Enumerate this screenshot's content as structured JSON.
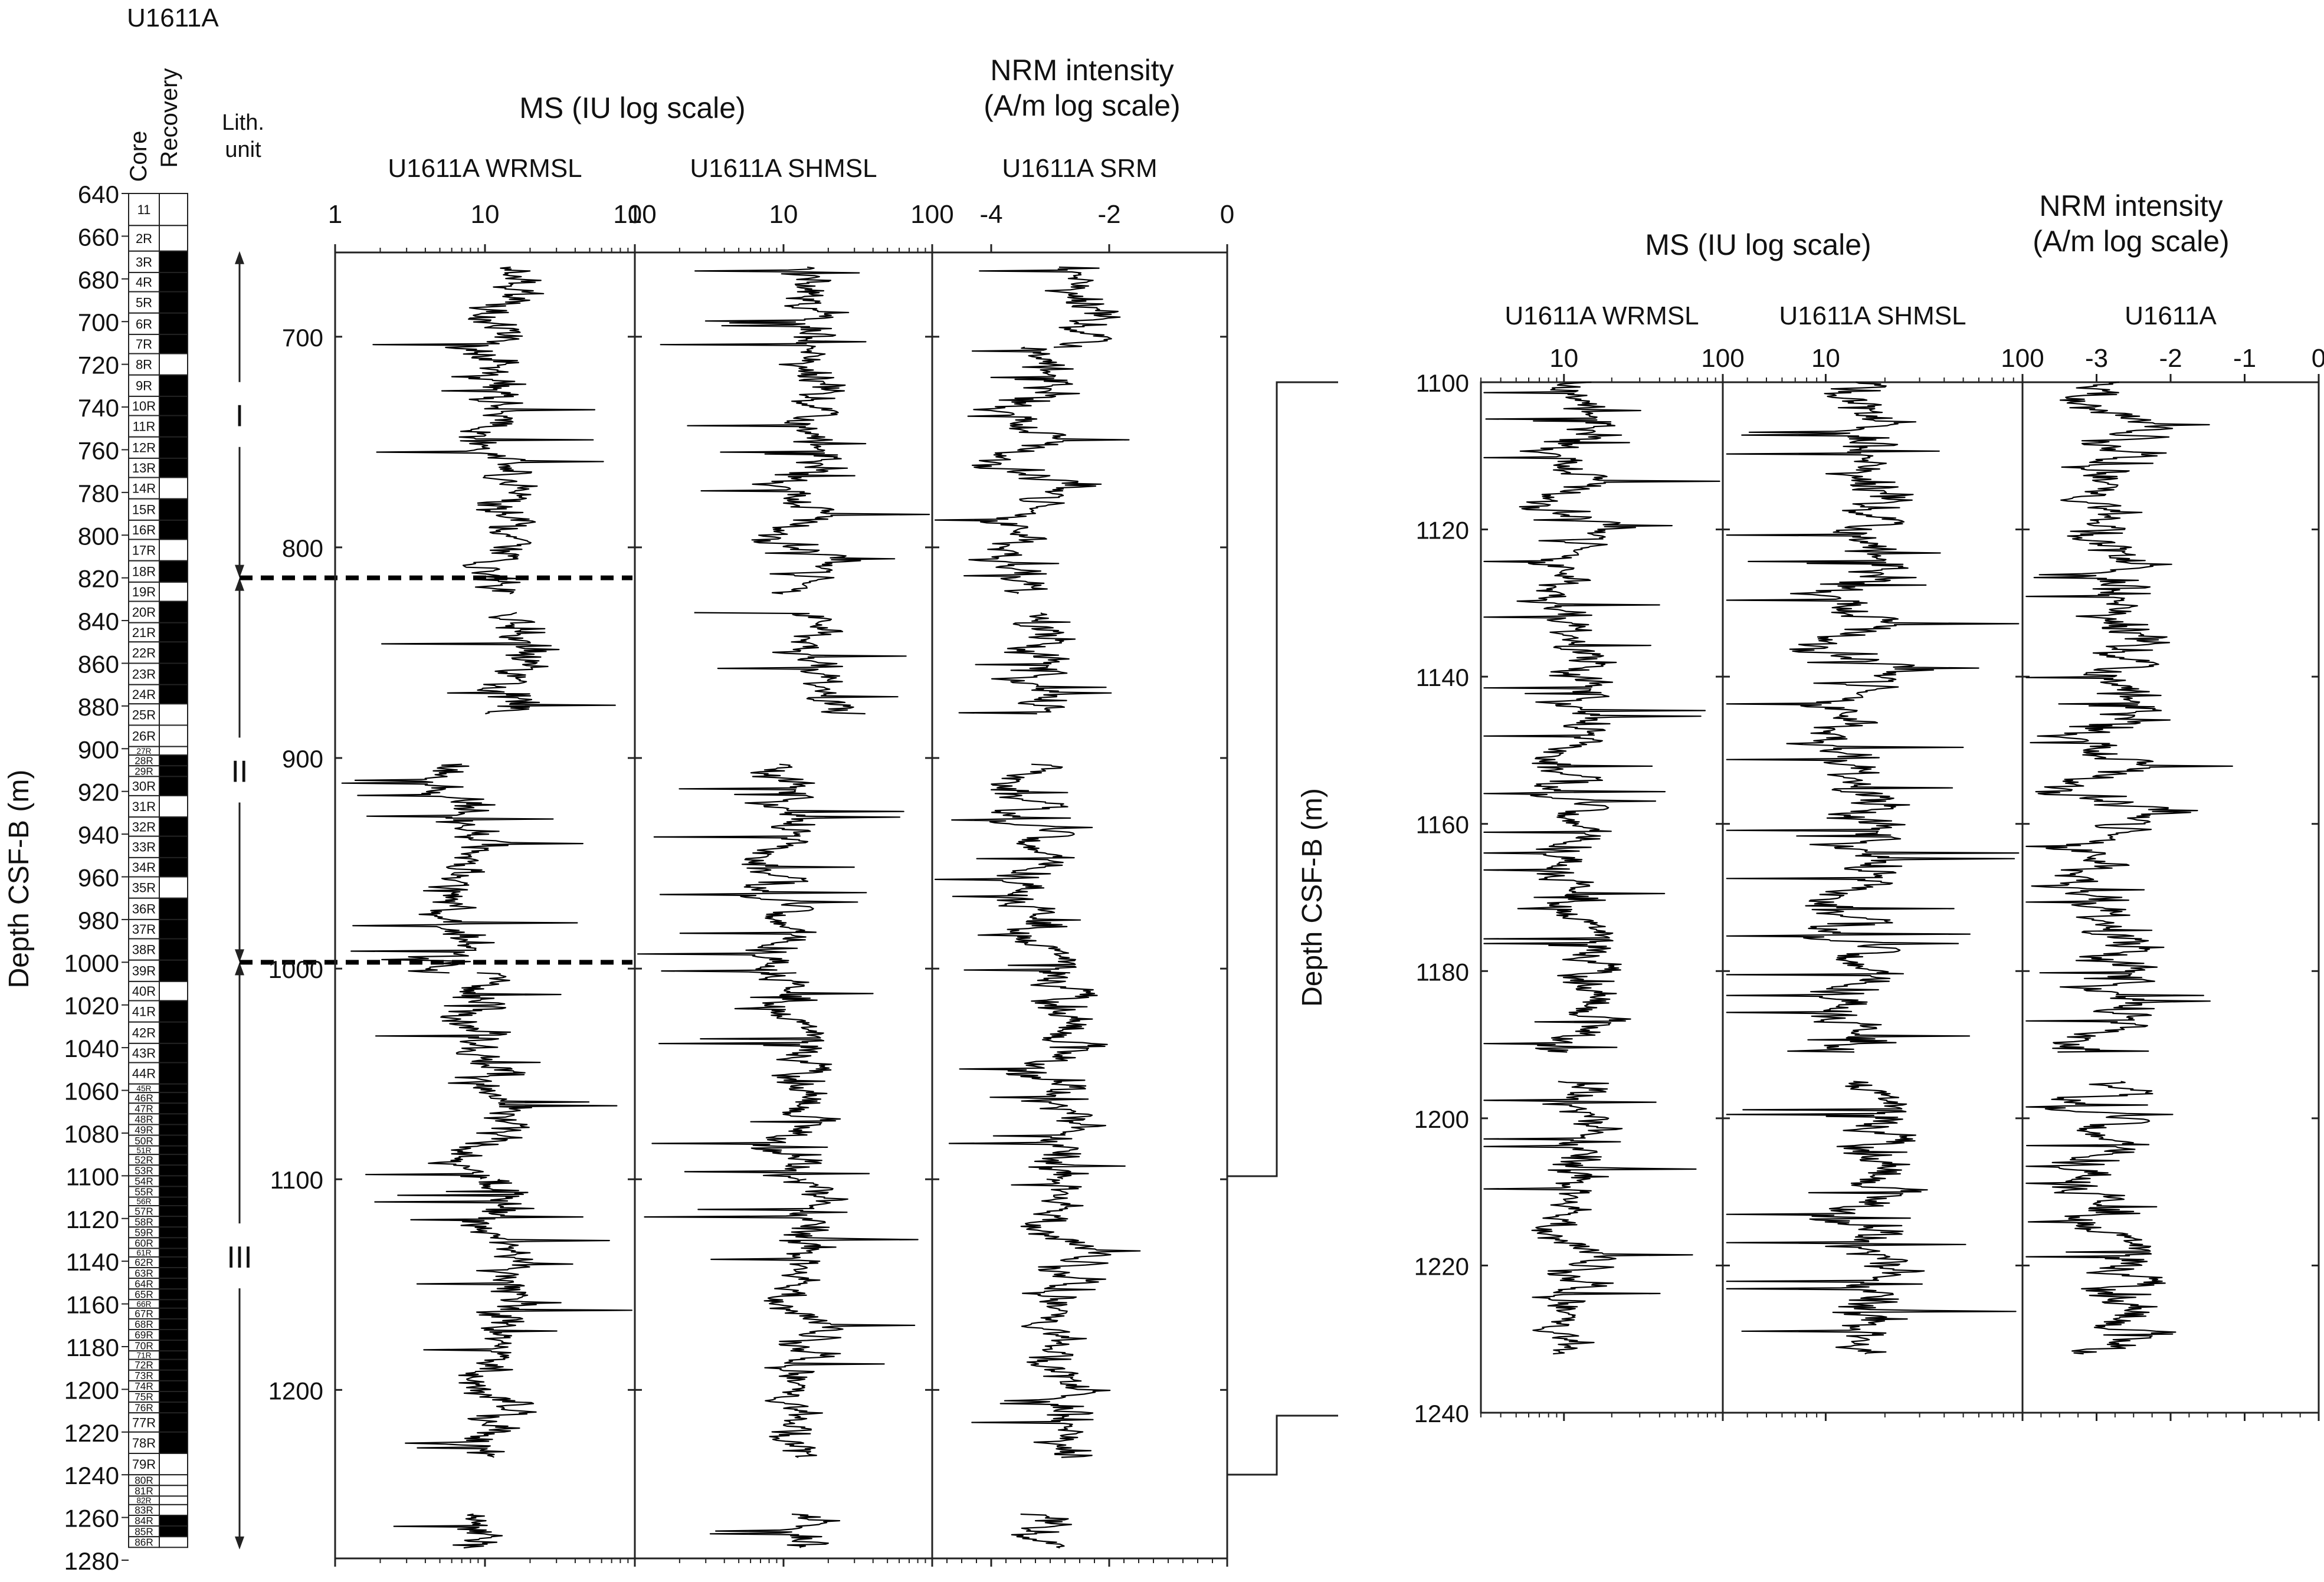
{
  "site_title": "U1611A",
  "core_column": {
    "core_label": "Core",
    "recovery_label": "Recovery",
    "lith_label": "Lith.\nunit",
    "depth_label": "Depth CSF-B (m)",
    "depth_ticks": [
      "640",
      "660",
      "680",
      "700",
      "720",
      "740",
      "760",
      "780",
      "800",
      "820",
      "840",
      "860",
      "880",
      "900",
      "920",
      "940",
      "960",
      "980",
      "1000",
      "1020",
      "1040",
      "1060",
      "1080",
      "1100",
      "1120",
      "1140",
      "1160",
      "1180",
      "1200",
      "1220",
      "1240",
      "1260",
      "1280"
    ],
    "cores": [
      {
        "label": "11",
        "top": 640,
        "bottom": 655,
        "recovery": 0
      },
      {
        "label": "2R",
        "top": 655,
        "bottom": 667,
        "recovery": 0
      },
      {
        "label": "3R",
        "top": 667,
        "bottom": 677,
        "recovery": 1
      },
      {
        "label": "4R",
        "top": 677,
        "bottom": 686,
        "recovery": 1
      },
      {
        "label": "5R",
        "top": 686,
        "bottom": 696,
        "recovery": 1
      },
      {
        "label": "6R",
        "top": 696,
        "bottom": 706,
        "recovery": 1
      },
      {
        "label": "7R",
        "top": 706,
        "bottom": 715,
        "recovery": 1
      },
      {
        "label": "8R",
        "top": 715,
        "bottom": 725,
        "recovery": 0
      },
      {
        "label": "9R",
        "top": 725,
        "bottom": 735,
        "recovery": 1
      },
      {
        "label": "10R",
        "top": 735,
        "bottom": 744,
        "recovery": 1
      },
      {
        "label": "11R",
        "top": 744,
        "bottom": 754,
        "recovery": 1
      },
      {
        "label": "12R",
        "top": 754,
        "bottom": 764,
        "recovery": 1
      },
      {
        "label": "13R",
        "top": 764,
        "bottom": 773,
        "recovery": 1
      },
      {
        "label": "14R",
        "top": 773,
        "bottom": 783,
        "recovery": 0
      },
      {
        "label": "15R",
        "top": 783,
        "bottom": 793,
        "recovery": 1
      },
      {
        "label": "16R",
        "top": 793,
        "bottom": 802,
        "recovery": 1
      },
      {
        "label": "17R",
        "top": 802,
        "bottom": 812,
        "recovery": 0
      },
      {
        "label": "18R",
        "top": 812,
        "bottom": 822,
        "recovery": 1
      },
      {
        "label": "19R",
        "top": 822,
        "bottom": 831,
        "recovery": 0
      },
      {
        "label": "20R",
        "top": 831,
        "bottom": 841,
        "recovery": 1
      },
      {
        "label": "21R",
        "top": 841,
        "bottom": 850,
        "recovery": 1
      },
      {
        "label": "22R",
        "top": 850,
        "bottom": 860,
        "recovery": 1
      },
      {
        "label": "23R",
        "top": 860,
        "bottom": 870,
        "recovery": 1
      },
      {
        "label": "24R",
        "top": 870,
        "bottom": 879,
        "recovery": 1
      },
      {
        "label": "25R",
        "top": 879,
        "bottom": 889,
        "recovery": 0
      },
      {
        "label": "26R",
        "top": 889,
        "bottom": 899,
        "recovery": 0
      },
      {
        "label": "27R",
        "top": 899,
        "bottom": 903,
        "recovery": 0
      },
      {
        "label": "28R",
        "top": 903,
        "bottom": 908,
        "recovery": 1
      },
      {
        "label": "29R",
        "top": 908,
        "bottom": 913,
        "recovery": 1
      },
      {
        "label": "30R",
        "top": 913,
        "bottom": 922,
        "recovery": 1
      },
      {
        "label": "31R",
        "top": 922,
        "bottom": 932,
        "recovery": 0
      },
      {
        "label": "32R",
        "top": 932,
        "bottom": 941,
        "recovery": 1
      },
      {
        "label": "33R",
        "top": 941,
        "bottom": 951,
        "recovery": 1
      },
      {
        "label": "34R",
        "top": 951,
        "bottom": 960,
        "recovery": 1
      },
      {
        "label": "35R",
        "top": 960,
        "bottom": 970,
        "recovery": 0
      },
      {
        "label": "36R",
        "top": 970,
        "bottom": 980,
        "recovery": 1
      },
      {
        "label": "37R",
        "top": 980,
        "bottom": 989,
        "recovery": 1
      },
      {
        "label": "38R",
        "top": 989,
        "bottom": 999,
        "recovery": 1
      },
      {
        "label": "39R",
        "top": 999,
        "bottom": 1009,
        "recovery": 1
      },
      {
        "label": "40R",
        "top": 1009,
        "bottom": 1018,
        "recovery": 0
      },
      {
        "label": "41R",
        "top": 1018,
        "bottom": 1028,
        "recovery": 1
      },
      {
        "label": "42R",
        "top": 1028,
        "bottom": 1038,
        "recovery": 1
      },
      {
        "label": "43R",
        "top": 1038,
        "bottom": 1047,
        "recovery": 1
      },
      {
        "label": "44R",
        "top": 1047,
        "bottom": 1057,
        "recovery": 1
      },
      {
        "label": "45R",
        "top": 1057,
        "bottom": 1061,
        "recovery": 1
      },
      {
        "label": "46R",
        "top": 1061,
        "bottom": 1066,
        "recovery": 1
      },
      {
        "label": "47R",
        "top": 1066,
        "bottom": 1071,
        "recovery": 1
      },
      {
        "label": "48R",
        "top": 1071,
        "bottom": 1076,
        "recovery": 1
      },
      {
        "label": "49R",
        "top": 1076,
        "bottom": 1081,
        "recovery": 1
      },
      {
        "label": "50R",
        "top": 1081,
        "bottom": 1086,
        "recovery": 1
      },
      {
        "label": "51R",
        "top": 1086,
        "bottom": 1090,
        "recovery": 1
      },
      {
        "label": "52R",
        "top": 1090,
        "bottom": 1095,
        "recovery": 1
      },
      {
        "label": "53R",
        "top": 1095,
        "bottom": 1100,
        "recovery": 1
      },
      {
        "label": "54R",
        "top": 1100,
        "bottom": 1105,
        "recovery": 1
      },
      {
        "label": "55R",
        "top": 1105,
        "bottom": 1110,
        "recovery": 1
      },
      {
        "label": "56R",
        "top": 1110,
        "bottom": 1114,
        "recovery": 1
      },
      {
        "label": "57R",
        "top": 1114,
        "bottom": 1119,
        "recovery": 1
      },
      {
        "label": "58R",
        "top": 1119,
        "bottom": 1124,
        "recovery": 1
      },
      {
        "label": "59R",
        "top": 1124,
        "bottom": 1129,
        "recovery": 1
      },
      {
        "label": "60R",
        "top": 1129,
        "bottom": 1134,
        "recovery": 1
      },
      {
        "label": "61R",
        "top": 1134,
        "bottom": 1138,
        "recovery": 1
      },
      {
        "label": "62R",
        "top": 1138,
        "bottom": 1143,
        "recovery": 1
      },
      {
        "label": "63R",
        "top": 1143,
        "bottom": 1148,
        "recovery": 1
      },
      {
        "label": "64R",
        "top": 1148,
        "bottom": 1153,
        "recovery": 1
      },
      {
        "label": "65R",
        "top": 1153,
        "bottom": 1158,
        "recovery": 1
      },
      {
        "label": "66R",
        "top": 1158,
        "bottom": 1162,
        "recovery": 1
      },
      {
        "label": "67R",
        "top": 1162,
        "bottom": 1167,
        "recovery": 1
      },
      {
        "label": "68R",
        "top": 1167,
        "bottom": 1172,
        "recovery": 1
      },
      {
        "label": "69R",
        "top": 1172,
        "bottom": 1177,
        "recovery": 1
      },
      {
        "label": "70R",
        "top": 1177,
        "bottom": 1182,
        "recovery": 1
      },
      {
        "label": "71R",
        "top": 1182,
        "bottom": 1186,
        "recovery": 1
      },
      {
        "label": "72R",
        "top": 1186,
        "bottom": 1191,
        "recovery": 1
      },
      {
        "label": "73R",
        "top": 1191,
        "bottom": 1196,
        "recovery": 1
      },
      {
        "label": "74R",
        "top": 1196,
        "bottom": 1201,
        "recovery": 1
      },
      {
        "label": "75R",
        "top": 1201,
        "bottom": 1206,
        "recovery": 1
      },
      {
        "label": "76R",
        "top": 1206,
        "bottom": 1211,
        "recovery": 1
      },
      {
        "label": "77R",
        "top": 1211,
        "bottom": 1220,
        "recovery": 1
      },
      {
        "label": "78R",
        "top": 1220,
        "bottom": 1230,
        "recovery": 1
      },
      {
        "label": "79R",
        "top": 1230,
        "bottom": 1240,
        "recovery": 0
      },
      {
        "label": "80R",
        "top": 1240,
        "bottom": 1245,
        "recovery": 0
      },
      {
        "label": "81R",
        "top": 1245,
        "bottom": 1250,
        "recovery": 0
      },
      {
        "label": "82R",
        "top": 1250,
        "bottom": 1254,
        "recovery": 0
      },
      {
        "label": "83R",
        "top": 1254,
        "bottom": 1259,
        "recovery": 0
      },
      {
        "label": "84R",
        "top": 1259,
        "bottom": 1264,
        "recovery": 1
      },
      {
        "label": "85R",
        "top": 1264,
        "bottom": 1269,
        "recovery": 1
      },
      {
        "label": "86R",
        "top": 1269,
        "bottom": 1274,
        "recovery": 0
      }
    ],
    "lith_units": [
      {
        "label": "I",
        "top": 667,
        "bottom": 820
      },
      {
        "label": "II",
        "top": 820,
        "bottom": 1000
      },
      {
        "label": "III",
        "top": 1000,
        "bottom": 1275
      }
    ],
    "unit_boundaries": [
      820,
      1000
    ]
  },
  "panel_a": {
    "ms_group_title": "MS (IU log scale)",
    "nrm_group_title": "NRM intensity\n(A/m log scale)",
    "depth_ticks": [
      "700",
      "800",
      "900",
      "1000",
      "1100",
      "1200"
    ],
    "tracks": [
      {
        "name": "U1611A WRMSL",
        "ticks": [
          "1",
          "10",
          "100"
        ]
      },
      {
        "name": "U1611A SHMSL",
        "ticks": [
          "1",
          "10",
          "100"
        ]
      },
      {
        "name": "U1611A SRM",
        "ticks": [
          "-4",
          "-2",
          "0"
        ]
      }
    ]
  },
  "panel_b": {
    "ms_group_title": "MS (IU log scale)",
    "nrm_group_title": "NRM intensity\n(A/m log scale)",
    "depth_label": "Depth CSF-B (m)",
    "depth_ticks": [
      "1100",
      "1120",
      "1140",
      "1160",
      "1180",
      "1200",
      "1220",
      "1240"
    ],
    "tracks": [
      {
        "name": "U1611A WRMSL",
        "ticks": [
          "10",
          "100"
        ]
      },
      {
        "name": "U1611A SHMSL",
        "ticks": [
          "10",
          "100"
        ]
      },
      {
        "name": "U1611A",
        "ticks": [
          "-3",
          "-2",
          "-1",
          "0"
        ]
      }
    ]
  },
  "chart_data": [
    {
      "type": "line",
      "title": "U1611A",
      "ylabel": "Depth CSF-B (m)",
      "y_axis": "depth, increasing downward",
      "ylim": [
        660,
        1280
      ],
      "series": [
        {
          "name": "U1611A WRMSL",
          "x_scale": "log",
          "xlim": [
            1,
            100
          ],
          "segments": [
            [
              667,
              822,
              12
            ],
            [
              831,
              879,
              16
            ],
            [
              903,
              1002,
              7
            ],
            [
              1002,
              1100,
              10
            ],
            [
              1100,
              1232,
              12
            ],
            [
              1259,
              1275,
              9
            ]
          ]
        },
        {
          "name": "U1611A SHMSL",
          "x_scale": "log",
          "xlim": [
            1,
            100
          ],
          "segments": [
            [
              667,
              822,
              14
            ],
            [
              831,
              879,
              20
            ],
            [
              903,
              1002,
              10
            ],
            [
              1002,
              1100,
              11
            ],
            [
              1100,
              1232,
              13
            ],
            [
              1259,
              1275,
              13
            ]
          ]
        },
        {
          "name": "U1611A SRM",
          "x_scale": "log",
          "xlim": [
            -5,
            0
          ],
          "segments": [
            [
              667,
              705,
              -2.6
            ],
            [
              705,
              822,
              -3.3
            ],
            [
              831,
              879,
              -3.3
            ],
            [
              903,
              1002,
              -3.2
            ],
            [
              1002,
              1100,
              -3.0
            ],
            [
              1100,
              1232,
              -2.8
            ],
            [
              1259,
              1275,
              -3.4
            ]
          ]
        }
      ]
    },
    {
      "type": "line",
      "ylabel": "Depth CSF-B (m)",
      "y_axis": "depth, increasing downward",
      "ylim": [
        1100,
        1240
      ],
      "series": [
        {
          "name": "U1611A WRMSL",
          "x_scale": "log",
          "xlim": [
            3,
            100
          ],
          "segments": [
            [
              1100,
              1191,
              12
            ],
            [
              1195,
              1232,
              11
            ]
          ]
        },
        {
          "name": "U1611A SHMSL",
          "x_scale": "log",
          "xlim": [
            3,
            100
          ],
          "segments": [
            [
              1100,
              1191,
              15
            ],
            [
              1195,
              1232,
              15
            ]
          ]
        },
        {
          "name": "U1611A",
          "x_scale": "log",
          "xlim": [
            -4,
            0
          ],
          "segments": [
            [
              1100,
              1191,
              -2.8
            ],
            [
              1195,
              1232,
              -2.9
            ]
          ]
        }
      ]
    }
  ]
}
